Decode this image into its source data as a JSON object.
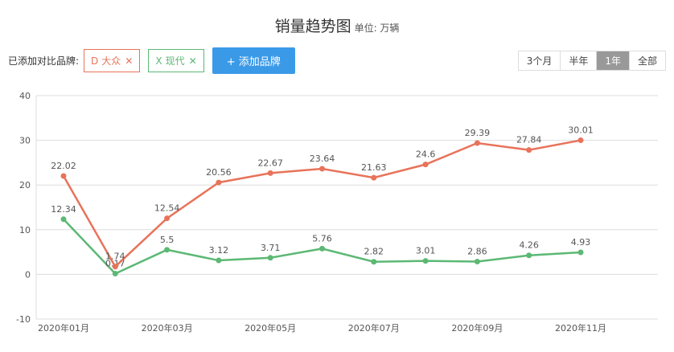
{
  "header": {
    "title": "销量趋势图",
    "subtitle": "单位: 万辆"
  },
  "controls": {
    "label": "已添加对比品牌:",
    "add_button": "+ 添加品牌",
    "ranges": [
      "3个月",
      "半年",
      "1年",
      "全部"
    ],
    "selected_range": 2
  },
  "chart_data": {
    "type": "line",
    "categories": [
      "2020年01月",
      null,
      "2020年03月",
      null,
      "2020年05月",
      null,
      "2020年07月",
      null,
      "2020年09月",
      null,
      "2020年11月"
    ],
    "series": [
      {
        "name": "现代",
        "badge": "X",
        "color": "#5cb874",
        "values": [
          12.34,
          0.17,
          5.5,
          3.12,
          3.71,
          5.76,
          2.82,
          3.01,
          2.86,
          4.26,
          4.93
        ]
      },
      {
        "name": "大众",
        "badge": "D",
        "color": "#e8735a",
        "values": [
          22.02,
          1.74,
          12.54,
          20.56,
          22.67,
          23.64,
          21.63,
          24.6,
          29.39,
          27.84,
          30.01
        ]
      }
    ],
    "ylim": [
      -10,
      40
    ],
    "yticks": [
      -10,
      0,
      10,
      20,
      30,
      40
    ],
    "grid": true
  }
}
